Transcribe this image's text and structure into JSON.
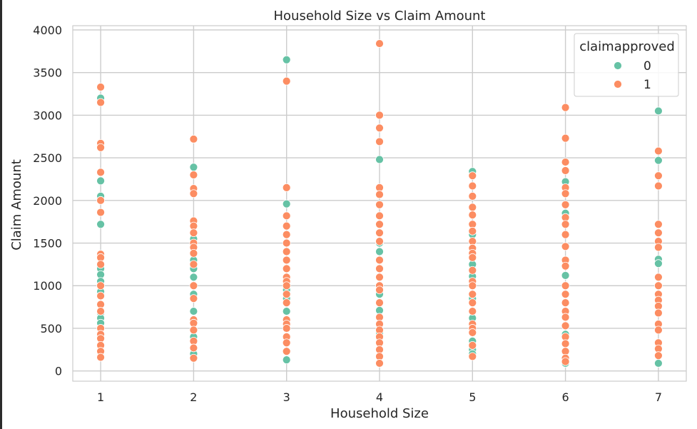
{
  "chart_data": {
    "type": "scatter",
    "title": "Household Size vs Claim Amount",
    "xlabel": "Household Size",
    "ylabel": "Claim Amount",
    "xlim": [
      0.7,
      7.3
    ],
    "ylim": [
      -120,
      4050
    ],
    "xticks": [
      1,
      2,
      3,
      4,
      5,
      6,
      7
    ],
    "yticks": [
      0,
      500,
      1000,
      1500,
      2000,
      2500,
      3000,
      3500,
      4000
    ],
    "grid": true,
    "legend": {
      "title": "claimapproved",
      "placement": "top-right"
    },
    "series": [
      {
        "name": "0",
        "color": "#66c2a5",
        "points": [
          [
            1,
            3200
          ],
          [
            1,
            2230
          ],
          [
            1,
            2050
          ],
          [
            1,
            1720
          ],
          [
            1,
            1200
          ],
          [
            1,
            1130
          ],
          [
            1,
            1050
          ],
          [
            1,
            930
          ],
          [
            1,
            680
          ],
          [
            1,
            620
          ],
          [
            1,
            560
          ],
          [
            2,
            2390
          ],
          [
            2,
            1550
          ],
          [
            2,
            1300
          ],
          [
            2,
            1200
          ],
          [
            2,
            1100
          ],
          [
            2,
            900
          ],
          [
            2,
            700
          ],
          [
            2,
            400
          ],
          [
            2,
            200
          ],
          [
            3,
            3650
          ],
          [
            3,
            1960
          ],
          [
            3,
            950
          ],
          [
            3,
            850
          ],
          [
            3,
            700
          ],
          [
            3,
            130
          ],
          [
            4,
            2480
          ],
          [
            4,
            1500
          ],
          [
            4,
            1400
          ],
          [
            4,
            900
          ],
          [
            4,
            710
          ],
          [
            4,
            450
          ],
          [
            5,
            2340
          ],
          [
            5,
            1600
          ],
          [
            5,
            1250
          ],
          [
            5,
            1110
          ],
          [
            5,
            850
          ],
          [
            5,
            620
          ],
          [
            5,
            350
          ],
          [
            5,
            250
          ],
          [
            5,
            200
          ],
          [
            6,
            2220
          ],
          [
            6,
            1850
          ],
          [
            6,
            1120
          ],
          [
            6,
            430
          ],
          [
            6,
            90
          ],
          [
            7,
            3050
          ],
          [
            7,
            2470
          ],
          [
            7,
            1450
          ],
          [
            7,
            1310
          ],
          [
            7,
            1260
          ],
          [
            7,
            90
          ]
        ]
      },
      {
        "name": "1",
        "color": "#fc8d62",
        "points": [
          [
            1,
            3330
          ],
          [
            1,
            3150
          ],
          [
            1,
            2670
          ],
          [
            1,
            2620
          ],
          [
            1,
            2330
          ],
          [
            1,
            2000
          ],
          [
            1,
            1860
          ],
          [
            1,
            1370
          ],
          [
            1,
            1330
          ],
          [
            1,
            1250
          ],
          [
            1,
            1000
          ],
          [
            1,
            880
          ],
          [
            1,
            780
          ],
          [
            1,
            700
          ],
          [
            1,
            500
          ],
          [
            1,
            430
          ],
          [
            1,
            380
          ],
          [
            1,
            300
          ],
          [
            1,
            230
          ],
          [
            1,
            160
          ],
          [
            2,
            2720
          ],
          [
            2,
            2300
          ],
          [
            2,
            2140
          ],
          [
            2,
            2080
          ],
          [
            2,
            1760
          ],
          [
            2,
            1700
          ],
          [
            2,
            1620
          ],
          [
            2,
            1500
          ],
          [
            2,
            1450
          ],
          [
            2,
            1380
          ],
          [
            2,
            1250
          ],
          [
            2,
            1000
          ],
          [
            2,
            850
          ],
          [
            2,
            600
          ],
          [
            2,
            560
          ],
          [
            2,
            480
          ],
          [
            2,
            350
          ],
          [
            2,
            270
          ],
          [
            2,
            150
          ],
          [
            3,
            3400
          ],
          [
            3,
            2150
          ],
          [
            3,
            1820
          ],
          [
            3,
            1700
          ],
          [
            3,
            1600
          ],
          [
            3,
            1500
          ],
          [
            3,
            1400
          ],
          [
            3,
            1300
          ],
          [
            3,
            1200
          ],
          [
            3,
            1100
          ],
          [
            3,
            1050
          ],
          [
            3,
            1000
          ],
          [
            3,
            900
          ],
          [
            3,
            800
          ],
          [
            3,
            600
          ],
          [
            3,
            550
          ],
          [
            3,
            500
          ],
          [
            3,
            400
          ],
          [
            3,
            330
          ],
          [
            3,
            230
          ],
          [
            4,
            3840
          ],
          [
            4,
            3000
          ],
          [
            4,
            2850
          ],
          [
            4,
            2690
          ],
          [
            4,
            2150
          ],
          [
            4,
            2070
          ],
          [
            4,
            1950
          ],
          [
            4,
            1820
          ],
          [
            4,
            1720
          ],
          [
            4,
            1620
          ],
          [
            4,
            1520
          ],
          [
            4,
            1300
          ],
          [
            4,
            1200
          ],
          [
            4,
            1100
          ],
          [
            4,
            1000
          ],
          [
            4,
            950
          ],
          [
            4,
            800
          ],
          [
            4,
            630
          ],
          [
            4,
            550
          ],
          [
            4,
            480
          ],
          [
            4,
            400
          ],
          [
            4,
            330
          ],
          [
            4,
            250
          ],
          [
            4,
            170
          ],
          [
            4,
            90
          ],
          [
            5,
            2290
          ],
          [
            5,
            2170
          ],
          [
            5,
            2050
          ],
          [
            5,
            1920
          ],
          [
            5,
            1830
          ],
          [
            5,
            1720
          ],
          [
            5,
            1640
          ],
          [
            5,
            1520
          ],
          [
            5,
            1440
          ],
          [
            5,
            1380
          ],
          [
            5,
            1330
          ],
          [
            5,
            1180
          ],
          [
            5,
            1050
          ],
          [
            5,
            1000
          ],
          [
            5,
            900
          ],
          [
            5,
            800
          ],
          [
            5,
            700
          ],
          [
            5,
            550
          ],
          [
            5,
            500
          ],
          [
            5,
            450
          ],
          [
            5,
            300
          ],
          [
            5,
            170
          ],
          [
            6,
            3090
          ],
          [
            6,
            2730
          ],
          [
            6,
            2450
          ],
          [
            6,
            2350
          ],
          [
            6,
            2150
          ],
          [
            6,
            2080
          ],
          [
            6,
            1950
          ],
          [
            6,
            1800
          ],
          [
            6,
            1720
          ],
          [
            6,
            1600
          ],
          [
            6,
            1460
          ],
          [
            6,
            1300
          ],
          [
            6,
            1230
          ],
          [
            6,
            1000
          ],
          [
            6,
            900
          ],
          [
            6,
            800
          ],
          [
            6,
            700
          ],
          [
            6,
            630
          ],
          [
            6,
            530
          ],
          [
            6,
            400
          ],
          [
            6,
            320
          ],
          [
            6,
            230
          ],
          [
            6,
            150
          ],
          [
            6,
            110
          ],
          [
            7,
            2580
          ],
          [
            7,
            2290
          ],
          [
            7,
            2170
          ],
          [
            7,
            1720
          ],
          [
            7,
            1620
          ],
          [
            7,
            1520
          ],
          [
            7,
            1450
          ],
          [
            7,
            1100
          ],
          [
            7,
            1000
          ],
          [
            7,
            900
          ],
          [
            7,
            830
          ],
          [
            7,
            760
          ],
          [
            7,
            680
          ],
          [
            7,
            550
          ],
          [
            7,
            480
          ],
          [
            7,
            330
          ],
          [
            7,
            260
          ],
          [
            7,
            180
          ]
        ]
      }
    ]
  }
}
